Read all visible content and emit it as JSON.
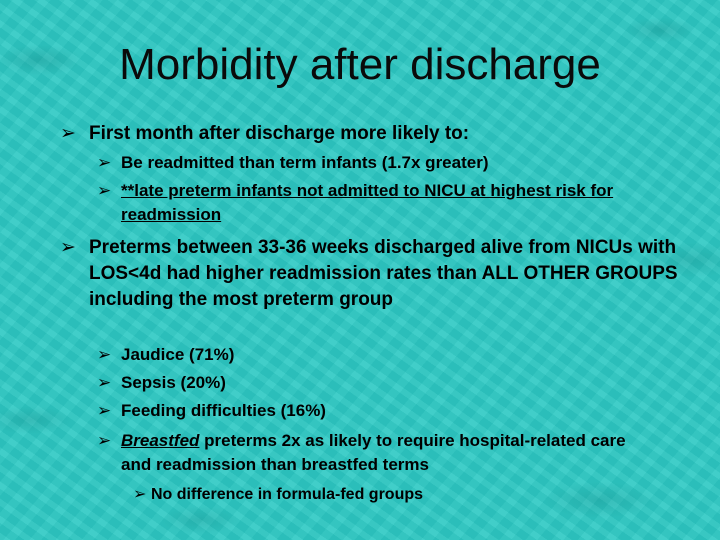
{
  "slide": {
    "title": "Morbidity after discharge",
    "bullet_glyph": "➢",
    "bullets": {
      "b1": "First month after discharge more likely to:",
      "b1_1": "Be readmitted than term infants (1.7x greater)",
      "b1_2": "**late preterm infants not admitted to NICU at highest risk for readmission",
      "b2": "Preterms between 33-36 weeks discharged alive from NICUs with LOS<4d had higher readmission rates than ALL OTHER GROUPS including the most preterm group",
      "b2_1": "Jaudice (71%)",
      "b2_2": "Sepsis (20%)",
      "b2_3": "Feeding difficulties (16%)",
      "b2_4_em": "Breastfed",
      "b2_4_rest": " preterms 2x as likely to require hospital-related care and readmission than breastfed terms",
      "b2_4_1": "No difference in formula-fed groups"
    },
    "colors": {
      "background": "#2fc9c4",
      "text": "#000000"
    }
  }
}
